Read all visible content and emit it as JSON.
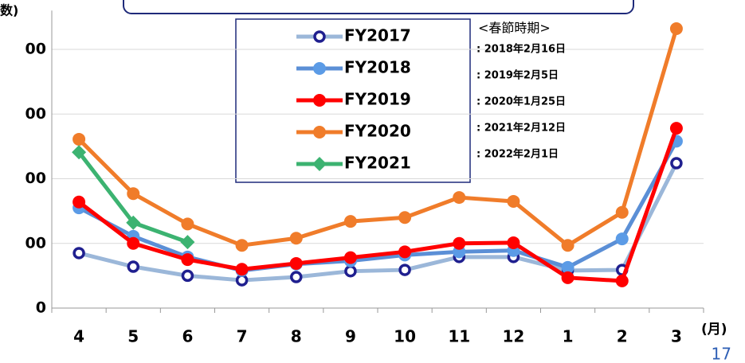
{
  "chart_data": {
    "type": "line",
    "y_label": "数)",
    "x_label": "(月)",
    "categories": [
      "4",
      "5",
      "6",
      "7",
      "8",
      "9",
      "10",
      "11",
      "12",
      "1",
      "2",
      "3"
    ],
    "ylim": [
      0,
      460
    ],
    "yticks": [
      0,
      {
        "value": 100,
        "label": "00"
      },
      {
        "value": 200,
        "label": "00"
      },
      {
        "value": 300,
        "label": "00"
      },
      {
        "value": 400,
        "label": "00"
      }
    ],
    "grid": true,
    "series": [
      {
        "name": "FY2017",
        "color": "#9bb7d9",
        "marker": "circle-open",
        "marker_color": "#1f1f8f",
        "values": [
          85,
          64,
          50,
          43,
          48,
          57,
          59,
          79,
          79,
          58,
          59,
          224
        ]
      },
      {
        "name": "FY2018",
        "color": "#5b8fd6",
        "marker": "circle",
        "marker_color": "#5b9be6",
        "values": [
          155,
          111,
          79,
          58,
          68,
          73,
          82,
          87,
          89,
          63,
          107,
          258
        ]
      },
      {
        "name": "FY2019",
        "color": "#ff0000",
        "marker": "circle",
        "marker_color": "#ff0000",
        "values": [
          164,
          100,
          75,
          60,
          69,
          78,
          87,
          100,
          101,
          47,
          42,
          278
        ]
      },
      {
        "name": "FY2020",
        "color": "#f07c2a",
        "marker": "circle",
        "marker_color": "#f07c2a",
        "values": [
          261,
          177,
          130,
          97,
          108,
          134,
          140,
          171,
          165,
          97,
          148,
          432
        ]
      },
      {
        "name": "FY2021",
        "color": "#3cb371",
        "marker": "diamond",
        "marker_color": "#3cb371",
        "values": [
          241,
          132,
          102,
          null,
          null,
          null,
          null,
          null,
          null,
          null,
          null,
          null
        ]
      }
    ],
    "annotation_title": "<春節時期>",
    "annotations": [
      ": 2018年2月16日",
      ": 2019年2月5日",
      ": 2020年1月25日",
      ": 2021年2月12日",
      ": 2022年2月1日"
    ],
    "page_number": "17"
  }
}
